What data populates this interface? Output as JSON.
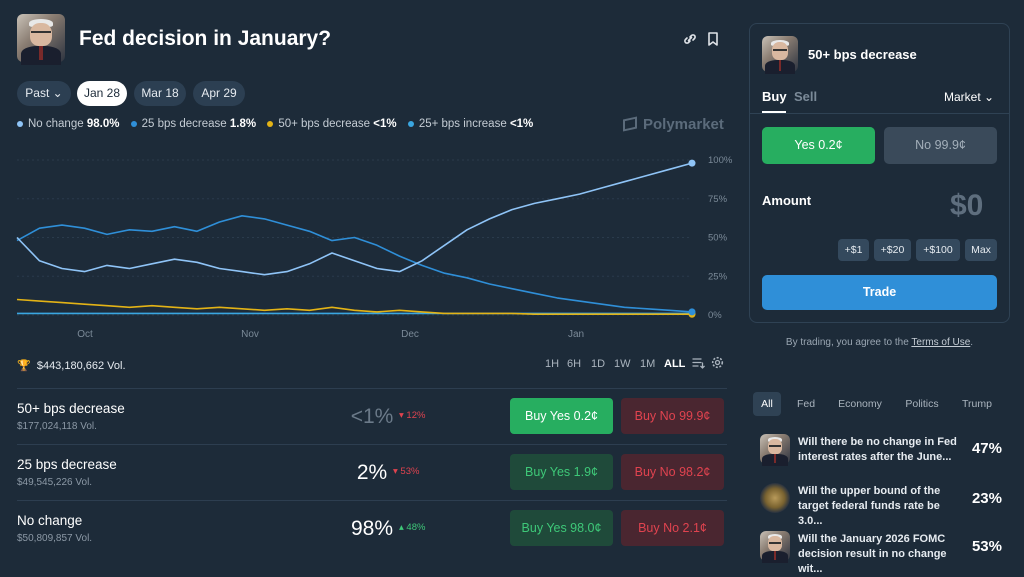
{
  "header": {
    "title": "Fed decision in January?",
    "link_icon": "link-icon",
    "bookmark_icon": "bookmark-icon"
  },
  "date_tabs": [
    {
      "label": "Past",
      "active": false
    },
    {
      "label": "Jan 28",
      "active": true
    },
    {
      "label": "Mar 18",
      "active": false
    },
    {
      "label": "Apr 29",
      "active": false
    }
  ],
  "legend": [
    {
      "label": "No change",
      "value": "98.0%",
      "color": "#8fc4f7"
    },
    {
      "label": "25 bps decrease",
      "value": "1.8%",
      "color": "#2f8fd8"
    },
    {
      "label": "50+ bps decrease",
      "value": "<1%",
      "color": "#e3b316"
    },
    {
      "label": "25+ bps increase",
      "value": "<1%",
      "color": "#3aa6e0"
    }
  ],
  "brand": "Polymarket",
  "chart_data": {
    "type": "line",
    "x_ticks": [
      "Oct",
      "Nov",
      "Dec",
      "Jan"
    ],
    "y_ticks": [
      "100%",
      "75%",
      "50%",
      "25%",
      "0%"
    ],
    "ylim": [
      0,
      100
    ],
    "series": [
      {
        "name": "No change",
        "color": "#8fc4f7",
        "values": [
          50,
          35,
          30,
          28,
          32,
          30,
          33,
          36,
          34,
          30,
          28,
          26,
          28,
          33,
          40,
          35,
          30,
          28,
          35,
          45,
          55,
          62,
          68,
          72,
          75,
          78,
          82,
          86,
          90,
          94,
          98
        ]
      },
      {
        "name": "25 bps decrease",
        "color": "#2f8fd8",
        "values": [
          48,
          56,
          58,
          56,
          52,
          55,
          54,
          57,
          54,
          60,
          64,
          62,
          58,
          54,
          48,
          50,
          45,
          38,
          32,
          27,
          24,
          20,
          17,
          14,
          11,
          9,
          7,
          5,
          4,
          3,
          2
        ]
      },
      {
        "name": "50+ bps decrease",
        "color": "#e3b316",
        "values": [
          10,
          9,
          8,
          7,
          6,
          5,
          6,
          5,
          4,
          5,
          4,
          3,
          4,
          3,
          5,
          3,
          2,
          3,
          2,
          1,
          1,
          1,
          1,
          0.5,
          0.5,
          0.5,
          0.5,
          0.5,
          0.5,
          0.5,
          0.5
        ]
      },
      {
        "name": "25+ bps increase",
        "color": "#3aa6e0",
        "values": [
          1,
          1,
          1,
          1,
          1,
          1,
          1,
          1,
          1,
          1,
          1,
          1,
          1,
          1,
          1,
          1,
          1,
          1,
          1,
          1,
          1,
          1,
          1,
          1,
          1,
          1,
          1,
          1,
          1,
          1,
          1
        ]
      }
    ]
  },
  "volume": {
    "label": "$443,180,662 Vol."
  },
  "ranges": [
    "1H",
    "6H",
    "1D",
    "1W",
    "1M",
    "ALL"
  ],
  "active_range": "ALL",
  "outcomes": [
    {
      "name": "50+ bps decrease",
      "vol": "$177,024,118 Vol.",
      "pct": "<1%",
      "change": "▾ 12%",
      "change_color": "#e0434f",
      "yes": "Buy Yes 0.2¢",
      "no": "Buy No 99.9¢"
    },
    {
      "name": "25 bps decrease",
      "vol": "$49,545,226 Vol.",
      "pct": "2%",
      "change": "▾ 53%",
      "change_color": "#e0434f",
      "yes": "Buy Yes 1.9¢",
      "no": "Buy No 98.2¢"
    },
    {
      "name": "No change",
      "vol": "$50,809,857 Vol.",
      "pct": "98%",
      "change": "▴ 48%",
      "change_color": "#3ec878",
      "yes": "Buy Yes 98.0¢",
      "no": "Buy No 2.1¢"
    }
  ],
  "trade_panel": {
    "title": "50+ bps decrease",
    "tab_buy": "Buy",
    "tab_sell": "Sell",
    "order_type": "Market",
    "yes_label": "Yes 0.2¢",
    "no_label": "No 99.9¢",
    "amount_label": "Amount",
    "amount_value": "$0",
    "chips": [
      "+$1",
      "+$20",
      "+$100",
      "Max"
    ],
    "trade_button": "Trade",
    "terms_prefix": "By trading, you agree to the",
    "terms_link": "Terms of Use",
    "terms_suffix": "."
  },
  "categories": [
    "All",
    "Fed",
    "Economy",
    "Politics",
    "Trump"
  ],
  "related": [
    {
      "text": "Will there be no change in Fed interest rates after the June...",
      "pct": "47%"
    },
    {
      "text": "Will the upper bound of the target federal funds rate be 3.0...",
      "pct": "23%"
    },
    {
      "text": "Will the January 2026 FOMC decision result in no change wit...",
      "pct": "53%"
    }
  ]
}
